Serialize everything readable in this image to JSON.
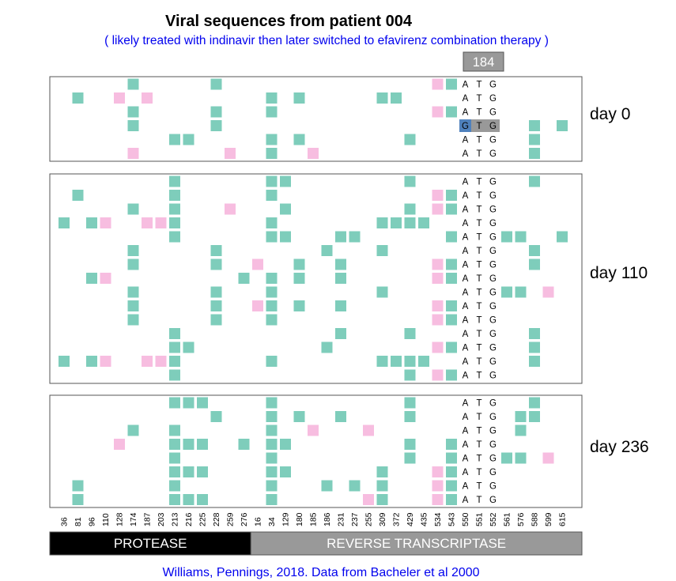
{
  "chart_data": {
    "type": "heatmap",
    "title": "Viral sequences from patient 004",
    "subtitle": "( likely treated with indinavir then later switched to efavirenz combination therapy )",
    "credit": "Williams, Pennings, 2018. Data from Bacheler et al 2000",
    "highlight_position": "184",
    "positions": [
      "36",
      "81",
      "96",
      "110",
      "128",
      "174",
      "187",
      "203",
      "213",
      "216",
      "225",
      "228",
      "259",
      "276",
      "16",
      "34",
      "129",
      "180",
      "185",
      "186",
      "231",
      "237",
      "255",
      "309",
      "372",
      "429",
      "435",
      "534",
      "543",
      "550",
      "551",
      "552",
      "561",
      "576",
      "588",
      "599",
      "615"
    ],
    "regions": [
      {
        "name": "PROTEASE",
        "color": "#000000",
        "from": 0,
        "to": 13
      },
      {
        "name": "REVERSE TRANSCRIPTASE",
        "color": "#999999",
        "from": 14,
        "to": 36
      }
    ],
    "legend_colors": {
      "green": "#7ecdbb",
      "pink": "#f7bde0",
      "highlight": "#4f81bd",
      "codon_box": "#999999"
    },
    "groups": [
      {
        "label": "day 0",
        "rows": [
          {
            "codon": "ATG",
            "mut": "5,11,28",
            "syn": "27"
          },
          {
            "codon": "ATG",
            "mut": "1,15,17,23,24",
            "syn": "4,6"
          },
          {
            "codon": "ATG",
            "mut": "5,11,15,28",
            "syn": "27"
          },
          {
            "codon": "GTG",
            "mut": "5,11,34,36",
            "syn": "",
            "hl": true
          },
          {
            "codon": "ATG",
            "mut": "8,9,15,17,25,34",
            "syn": ""
          },
          {
            "codon": "ATG",
            "mut": "15,34",
            "syn": "5,12,18"
          }
        ]
      },
      {
        "label": "day 110",
        "rows": [
          {
            "codon": "ATG",
            "mut": "8,15,16,25,34",
            "syn": ""
          },
          {
            "codon": "ATG",
            "mut": "1,8,15,28",
            "syn": "27"
          },
          {
            "codon": "ATG",
            "mut": "5,8,16,25,28",
            "syn": "12,27"
          },
          {
            "codon": "ATG",
            "mut": "0,2,8,15,23,24,25,26",
            "syn": "3,6,7"
          },
          {
            "codon": "ATG",
            "mut": "8,15,16,20,21,28,32,33,36",
            "syn": ""
          },
          {
            "codon": "ATG",
            "mut": "5,11,19,23,34",
            "syn": ""
          },
          {
            "codon": "ATG",
            "mut": "5,11,17,20,28,34",
            "syn": "14,27"
          },
          {
            "codon": "ATG",
            "mut": "2,13,15,17,20,28",
            "syn": "3,27"
          },
          {
            "codon": "ATG",
            "mut": "5,11,15,23,32,33",
            "syn": "35"
          },
          {
            "codon": "ATG",
            "mut": "5,11,15,17,20,28",
            "syn": "14,27"
          },
          {
            "codon": "ATG",
            "mut": "5,11,15,28",
            "syn": "27"
          },
          {
            "codon": "ATG",
            "mut": "8,20,25,34",
            "syn": ""
          },
          {
            "codon": "ATG",
            "mut": "8,9,19,28,34",
            "syn": "27"
          },
          {
            "codon": "ATG",
            "mut": "0,2,8,15,23,24,25,26,34",
            "syn": "3,6,7"
          },
          {
            "codon": "ATG",
            "mut": "8,25,28",
            "syn": "27"
          }
        ]
      },
      {
        "label": "day 236",
        "rows": [
          {
            "codon": "ATG",
            "mut": "8,9,10,15,25,34",
            "syn": ""
          },
          {
            "codon": "ATG",
            "mut": "11,15,17,20,25,33,34",
            "syn": ""
          },
          {
            "codon": "ATG",
            "mut": "5,8,15,33",
            "syn": "18,22"
          },
          {
            "codon": "ATG",
            "mut": "8,9,10,13,15,16,25,28",
            "syn": "4"
          },
          {
            "codon": "ATG",
            "mut": "8,15,25,28,32,33",
            "syn": "35"
          },
          {
            "codon": "ATG",
            "mut": "8,9,10,15,16,23,28",
            "syn": "27"
          },
          {
            "codon": "ATG",
            "mut": "1,8,15,19,21,23,28",
            "syn": "27"
          },
          {
            "codon": "ATG",
            "mut": "1,8,9,10,15,23,28",
            "syn": "22,27"
          }
        ]
      }
    ]
  }
}
